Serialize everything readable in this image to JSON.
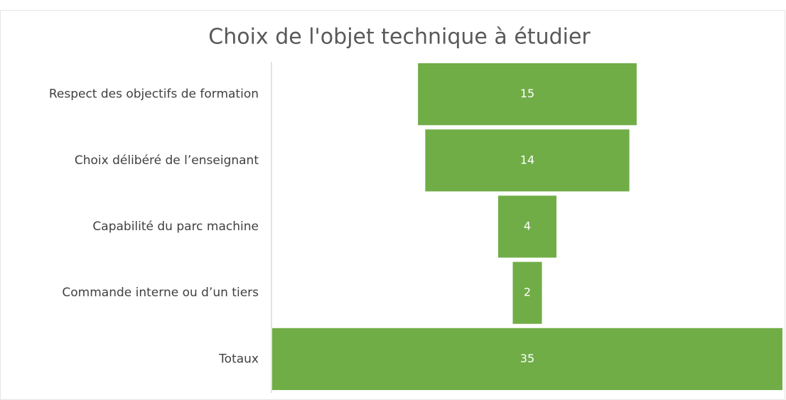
{
  "chart_data": {
    "type": "funnel",
    "title": "Choix de l'objet technique à étudier",
    "categories": [
      "Respect des objectifs de formation",
      "Choix délibéré de l’enseignant",
      "Capabilité du parc machine",
      "Commande interne ou d’un tiers",
      "Totaux"
    ],
    "values": [
      15,
      14,
      4,
      2,
      35
    ],
    "color": "#70ad47"
  }
}
